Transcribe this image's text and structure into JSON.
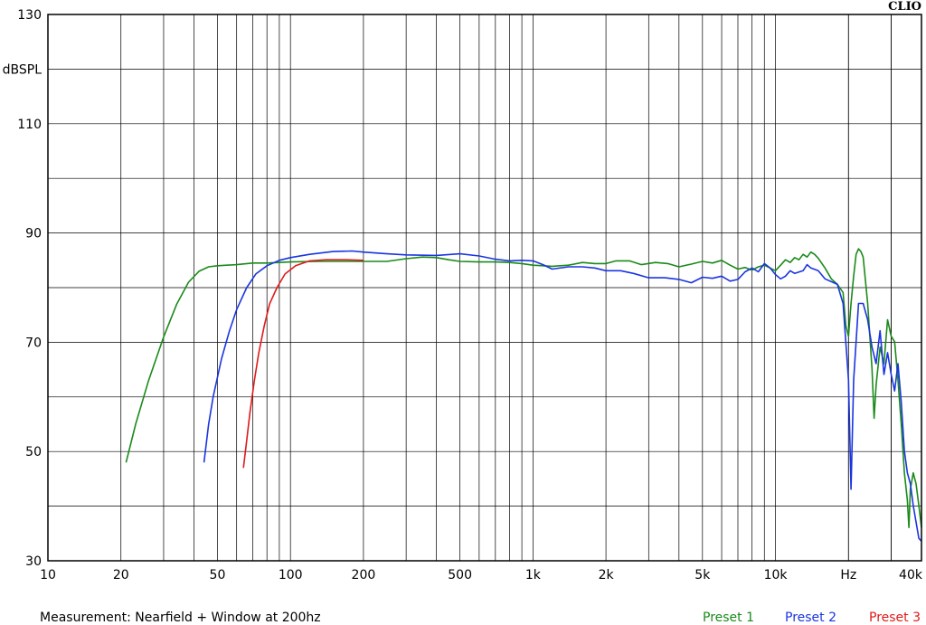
{
  "brand": "CLIO",
  "chart_data": {
    "type": "line",
    "title": "",
    "xlabel": "Hz",
    "ylabel": "dBSPL",
    "xscale": "log",
    "xlim": [
      10,
      40000
    ],
    "ylim": [
      30,
      130
    ],
    "grid": true,
    "x_tick_labels": [
      {
        "v": 10,
        "t": "10"
      },
      {
        "v": 20,
        "t": "20"
      },
      {
        "v": 50,
        "t": "50"
      },
      {
        "v": 100,
        "t": "100"
      },
      {
        "v": 200,
        "t": "200"
      },
      {
        "v": 500,
        "t": "500"
      },
      {
        "v": 1000,
        "t": "1k"
      },
      {
        "v": 2000,
        "t": "2k"
      },
      {
        "v": 5000,
        "t": "5k"
      },
      {
        "v": 10000,
        "t": "10k"
      },
      {
        "v": 20000,
        "t": "Hz"
      },
      {
        "v": 40000,
        "t": "40k"
      }
    ],
    "y_tick_labels": [
      {
        "v": 130,
        "t": "130"
      },
      {
        "v": 120,
        "t": "dBSPL"
      },
      {
        "v": 110,
        "t": "110"
      },
      {
        "v": 90,
        "t": "90"
      },
      {
        "v": 70,
        "t": "70"
      },
      {
        "v": 50,
        "t": "50"
      },
      {
        "v": 30,
        "t": "30"
      }
    ],
    "annotation": "Measurement: Nearfield + Window at 200hz",
    "legend_position": "bottom-right",
    "series": [
      {
        "name": "Preset 1",
        "color": "#1a8a1a",
        "points": [
          [
            21,
            48
          ],
          [
            23,
            55
          ],
          [
            26,
            63
          ],
          [
            30,
            71
          ],
          [
            34,
            77
          ],
          [
            38,
            81
          ],
          [
            42,
            83
          ],
          [
            46,
            83.8
          ],
          [
            50,
            84
          ],
          [
            60,
            84.2
          ],
          [
            70,
            84.5
          ],
          [
            80,
            84.5
          ],
          [
            100,
            84.7
          ],
          [
            130,
            84.8
          ],
          [
            160,
            84.8
          ],
          [
            200,
            84.8
          ],
          [
            250,
            84.8
          ],
          [
            300,
            85.3
          ],
          [
            350,
            85.6
          ],
          [
            400,
            85.5
          ],
          [
            450,
            85.1
          ],
          [
            500,
            84.8
          ],
          [
            600,
            84.7
          ],
          [
            700,
            84.7
          ],
          [
            800,
            84.6
          ],
          [
            900,
            84.4
          ],
          [
            1000,
            84.1
          ],
          [
            1200,
            83.9
          ],
          [
            1400,
            84.1
          ],
          [
            1600,
            84.6
          ],
          [
            1800,
            84.4
          ],
          [
            2000,
            84.4
          ],
          [
            2200,
            84.9
          ],
          [
            2500,
            84.9
          ],
          [
            2800,
            84.2
          ],
          [
            3200,
            84.6
          ],
          [
            3600,
            84.4
          ],
          [
            4000,
            83.8
          ],
          [
            4500,
            84.3
          ],
          [
            5000,
            84.8
          ],
          [
            5500,
            84.5
          ],
          [
            6000,
            85
          ],
          [
            6500,
            84.1
          ],
          [
            7000,
            83.4
          ],
          [
            7500,
            83.7
          ],
          [
            8000,
            83.2
          ],
          [
            8500,
            83.8
          ],
          [
            9000,
            84.1
          ],
          [
            9500,
            83.6
          ],
          [
            10000,
            83.1
          ],
          [
            10500,
            84.1
          ],
          [
            11000,
            85.1
          ],
          [
            11500,
            84.6
          ],
          [
            12000,
            85.5
          ],
          [
            12500,
            85.1
          ],
          [
            13000,
            86.1
          ],
          [
            13500,
            85.6
          ],
          [
            14000,
            86.5
          ],
          [
            14500,
            86.1
          ],
          [
            15000,
            85.4
          ],
          [
            16000,
            83.6
          ],
          [
            17000,
            81.6
          ],
          [
            18000,
            80.6
          ],
          [
            19000,
            79.1
          ],
          [
            19500,
            73.1
          ],
          [
            20000,
            71.1
          ],
          [
            20500,
            77.1
          ],
          [
            21000,
            82.1
          ],
          [
            21500,
            86.1
          ],
          [
            22000,
            87.1
          ],
          [
            22500,
            86.6
          ],
          [
            23000,
            85.6
          ],
          [
            24000,
            77.1
          ],
          [
            25000,
            65.1
          ],
          [
            25500,
            56.1
          ],
          [
            26000,
            62.1
          ],
          [
            27000,
            69.1
          ],
          [
            28000,
            66.1
          ],
          [
            29000,
            74.1
          ],
          [
            30000,
            71.1
          ],
          [
            31000,
            70.1
          ],
          [
            32000,
            63.1
          ],
          [
            33000,
            55.1
          ],
          [
            34000,
            46.1
          ],
          [
            35000,
            41.1
          ],
          [
            35500,
            36.1
          ],
          [
            36000,
            43.1
          ],
          [
            37000,
            46.1
          ],
          [
            38000,
            44.1
          ],
          [
            39000,
            40.1
          ],
          [
            40000,
            36.1
          ]
        ]
      },
      {
        "name": "Preset 2",
        "color": "#1a35e0",
        "points": [
          [
            44,
            48
          ],
          [
            46,
            55
          ],
          [
            48,
            60
          ],
          [
            52,
            67
          ],
          [
            56,
            72
          ],
          [
            60,
            76
          ],
          [
            66,
            80
          ],
          [
            72,
            82.5
          ],
          [
            80,
            84
          ],
          [
            90,
            85
          ],
          [
            100,
            85.5
          ],
          [
            120,
            86.1
          ],
          [
            150,
            86.6
          ],
          [
            180,
            86.7
          ],
          [
            200,
            86.5
          ],
          [
            250,
            86.2
          ],
          [
            300,
            86
          ],
          [
            400,
            85.9
          ],
          [
            500,
            86.2
          ],
          [
            600,
            85.8
          ],
          [
            700,
            85.2
          ],
          [
            800,
            84.9
          ],
          [
            900,
            85
          ],
          [
            1000,
            84.9
          ],
          [
            1100,
            84.2
          ],
          [
            1200,
            83.4
          ],
          [
            1400,
            83.8
          ],
          [
            1600,
            83.8
          ],
          [
            1800,
            83.6
          ],
          [
            2000,
            83.1
          ],
          [
            2300,
            83.1
          ],
          [
            2600,
            82.6
          ],
          [
            3000,
            81.8
          ],
          [
            3500,
            81.8
          ],
          [
            4000,
            81.5
          ],
          [
            4500,
            80.9
          ],
          [
            5000,
            81.9
          ],
          [
            5500,
            81.7
          ],
          [
            6000,
            82.1
          ],
          [
            6500,
            81.2
          ],
          [
            7000,
            81.5
          ],
          [
            7500,
            82.9
          ],
          [
            8000,
            83.6
          ],
          [
            8500,
            82.9
          ],
          [
            9000,
            84.4
          ],
          [
            9500,
            83.6
          ],
          [
            10000,
            82.4
          ],
          [
            10500,
            81.6
          ],
          [
            11000,
            82.1
          ],
          [
            11500,
            83.1
          ],
          [
            12000,
            82.6
          ],
          [
            13000,
            83.1
          ],
          [
            13500,
            84.2
          ],
          [
            14000,
            83.6
          ],
          [
            15000,
            83.1
          ],
          [
            16000,
            81.6
          ],
          [
            17000,
            81.1
          ],
          [
            18000,
            80.6
          ],
          [
            19000,
            77.1
          ],
          [
            20000,
            63.1
          ],
          [
            20500,
            43.1
          ],
          [
            21000,
            63.1
          ],
          [
            22000,
            77.1
          ],
          [
            23000,
            77.1
          ],
          [
            24000,
            74.1
          ],
          [
            25000,
            69.1
          ],
          [
            26000,
            66.1
          ],
          [
            27000,
            72.1
          ],
          [
            28000,
            64.1
          ],
          [
            29000,
            68.1
          ],
          [
            30000,
            64.1
          ],
          [
            31000,
            61.1
          ],
          [
            32000,
            66.1
          ],
          [
            33000,
            59.1
          ],
          [
            34000,
            50.1
          ],
          [
            35000,
            46.1
          ],
          [
            36000,
            44.1
          ],
          [
            37000,
            40.1
          ],
          [
            38000,
            37.1
          ],
          [
            39000,
            34.1
          ],
          [
            40000,
            33.6
          ]
        ]
      },
      {
        "name": "Preset 3",
        "color": "#e01a1a",
        "points": [
          [
            64,
            47
          ],
          [
            66,
            52
          ],
          [
            68,
            57
          ],
          [
            71,
            63
          ],
          [
            74,
            68
          ],
          [
            78,
            73
          ],
          [
            82,
            77
          ],
          [
            88,
            80
          ],
          [
            95,
            82.5
          ],
          [
            105,
            84
          ],
          [
            120,
            84.9
          ],
          [
            140,
            85.1
          ],
          [
            170,
            85.1
          ],
          [
            200,
            85
          ]
        ]
      }
    ]
  }
}
